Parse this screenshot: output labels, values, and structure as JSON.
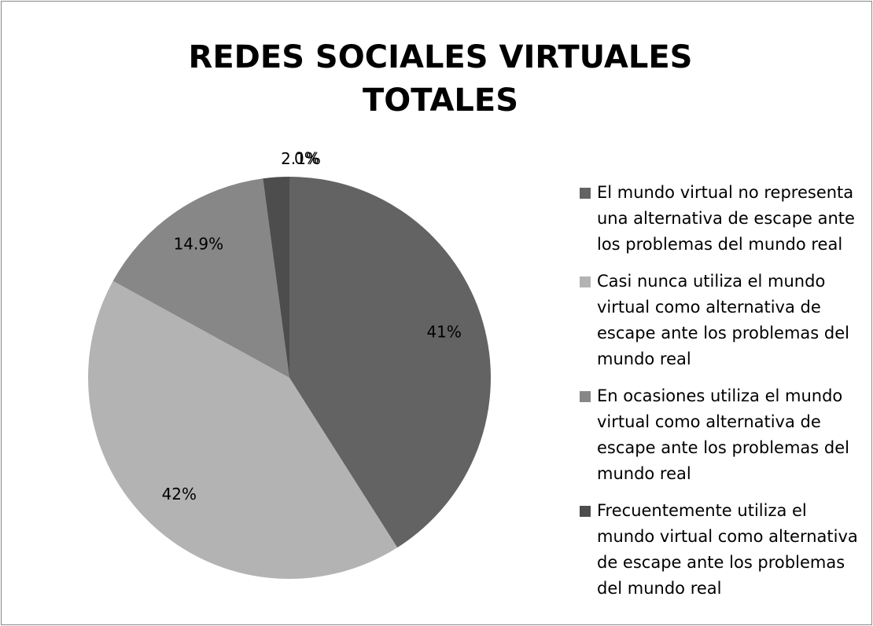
{
  "chart_data": {
    "type": "pie",
    "title": "REDES SOCIALES VIRTUALES TOTALES",
    "categories": [
      "El mundo virtual no representa una alternativa de escape ante los problemas del mundo real",
      "Casi nunca utiliza el mundo virtual como alternativa de escape ante los problemas del mundo real",
      "En ocasiones utiliza el mundo virtual como alternativa de escape ante los problemas del mundo real",
      "Frecuentemente utiliza el mundo virtual como alternativa de escape ante los problemas del mundo real",
      null
    ],
    "values": [
      41,
      42,
      14.9,
      2.1,
      0
    ],
    "value_labels": [
      "41%",
      "42%",
      "14.9%",
      "2.1%",
      "0%"
    ],
    "colors": [
      "#636363",
      "#b3b3b3",
      "#878787",
      "#4d4d4d",
      "#333333"
    ],
    "legend": "right"
  }
}
